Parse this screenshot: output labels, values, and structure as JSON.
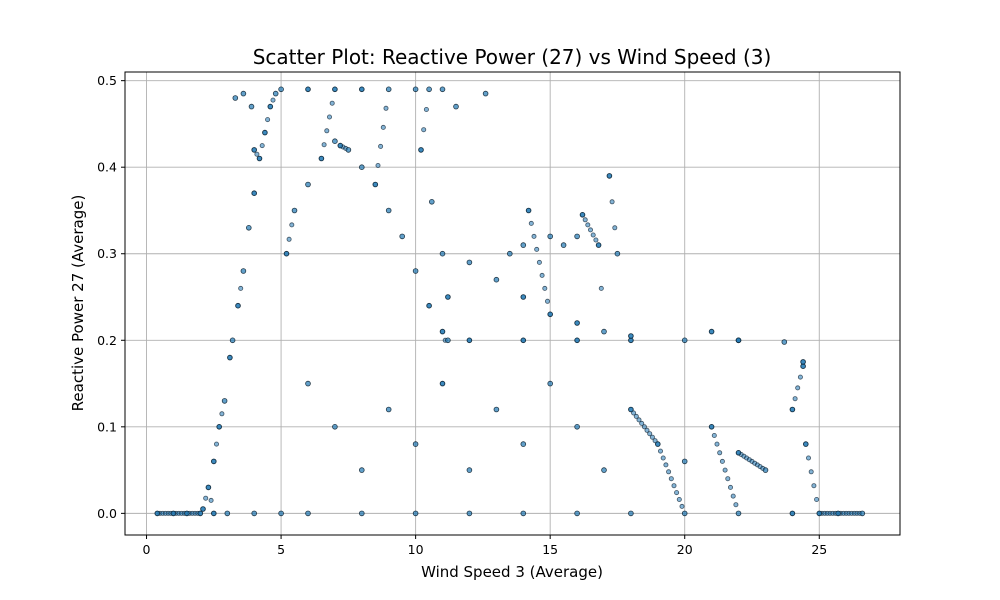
{
  "chart_data": {
    "type": "scatter",
    "title": "Scatter Plot: Reactive Power (27) vs Wind Speed (3)",
    "xlabel": "Wind Speed 3 (Average)",
    "ylabel": "Reactive Power 27 (Average)",
    "xlim": [
      -0.8,
      28.0
    ],
    "ylim": [
      -0.025,
      0.51
    ],
    "xticks": [
      0,
      5,
      10,
      15,
      20,
      25
    ],
    "yticks": [
      0.0,
      0.1,
      0.2,
      0.3,
      0.4,
      0.5
    ],
    "xtick_labels": [
      "0",
      "5",
      "10",
      "15",
      "20",
      "25"
    ],
    "ytick_labels": [
      "0.0",
      "0.1",
      "0.2",
      "0.3",
      "0.4",
      "0.5"
    ],
    "grid": true,
    "marker_color": "#1f77b4",
    "marker_edge_color": "#0b1e2d",
    "series": [
      {
        "shape_summary": {
          "baseline": {
            "x_range": [
              0.4,
              26.6
            ],
            "y": 0.0
          },
          "ramp_up": {
            "x_range": [
              2.0,
              5.0
            ],
            "y_range": [
              0.0,
              0.49
            ]
          },
          "plateau": {
            "x_range": [
              5.0,
              10.0
            ],
            "y": 0.49
          },
          "ramp_down": {
            "x_range": [
              10.0,
              11.2
            ],
            "y_range": [
              0.49,
              0.2
            ]
          },
          "tail": {
            "x_range": [
              11.2,
              23.7
            ],
            "y": 0.2
          },
          "inner_arc_peak": {
            "x": 7.2,
            "y": 0.43
          },
          "scatter_region": {
            "x_range": [
              4.5,
              24.5
            ],
            "y_range": [
              0.0,
              0.35
            ]
          }
        },
        "points": [
          [
            0.4,
            0.0
          ],
          [
            1.0,
            0.0
          ],
          [
            1.5,
            0.0
          ],
          [
            2.0,
            0.0
          ],
          [
            2.5,
            0.0
          ],
          [
            3.0,
            0.0
          ],
          [
            4.0,
            0.0
          ],
          [
            5.0,
            0.0
          ],
          [
            6.0,
            0.0
          ],
          [
            8.0,
            0.0
          ],
          [
            10.0,
            0.0
          ],
          [
            12.0,
            0.0
          ],
          [
            14.0,
            0.0
          ],
          [
            16.0,
            0.0
          ],
          [
            18.0,
            0.0
          ],
          [
            20.0,
            0.0
          ],
          [
            22.0,
            0.0
          ],
          [
            24.0,
            0.0
          ],
          [
            25.0,
            0.0
          ],
          [
            25.7,
            0.0
          ],
          [
            26.6,
            0.0
          ],
          [
            2.1,
            0.005
          ],
          [
            2.3,
            0.03
          ],
          [
            2.5,
            0.06
          ],
          [
            2.7,
            0.1
          ],
          [
            2.9,
            0.13
          ],
          [
            3.1,
            0.18
          ],
          [
            3.2,
            0.2
          ],
          [
            3.4,
            0.24
          ],
          [
            3.6,
            0.28
          ],
          [
            3.8,
            0.33
          ],
          [
            4.0,
            0.37
          ],
          [
            4.2,
            0.41
          ],
          [
            4.4,
            0.44
          ],
          [
            4.6,
            0.47
          ],
          [
            4.8,
            0.485
          ],
          [
            3.3,
            0.48
          ],
          [
            3.6,
            0.485
          ],
          [
            3.9,
            0.47
          ],
          [
            4.0,
            0.42
          ],
          [
            5.0,
            0.49
          ],
          [
            6.0,
            0.49
          ],
          [
            7.0,
            0.49
          ],
          [
            8.0,
            0.49
          ],
          [
            9.0,
            0.49
          ],
          [
            10.0,
            0.49
          ],
          [
            10.5,
            0.49
          ],
          [
            11.0,
            0.49
          ],
          [
            11.5,
            0.47
          ],
          [
            12.6,
            0.485
          ],
          [
            5.2,
            0.3
          ],
          [
            5.5,
            0.35
          ],
          [
            6.0,
            0.38
          ],
          [
            6.5,
            0.41
          ],
          [
            7.0,
            0.43
          ],
          [
            7.2,
            0.425
          ],
          [
            7.5,
            0.42
          ],
          [
            8.0,
            0.4
          ],
          [
            8.5,
            0.38
          ],
          [
            9.0,
            0.35
          ],
          [
            9.5,
            0.32
          ],
          [
            10.0,
            0.28
          ],
          [
            10.5,
            0.24
          ],
          [
            11.0,
            0.21
          ],
          [
            10.2,
            0.42
          ],
          [
            10.6,
            0.36
          ],
          [
            11.0,
            0.3
          ],
          [
            11.2,
            0.25
          ],
          [
            11.2,
            0.2
          ],
          [
            12.0,
            0.2
          ],
          [
            14.0,
            0.2
          ],
          [
            16.0,
            0.2
          ],
          [
            18.0,
            0.2
          ],
          [
            20.0,
            0.2
          ],
          [
            22.0,
            0.2
          ],
          [
            23.7,
            0.198
          ],
          [
            12.0,
            0.29
          ],
          [
            13.0,
            0.27
          ],
          [
            14.0,
            0.25
          ],
          [
            15.0,
            0.23
          ],
          [
            16.0,
            0.22
          ],
          [
            17.0,
            0.21
          ],
          [
            18.0,
            0.205
          ],
          [
            15.0,
            0.32
          ],
          [
            15.5,
            0.31
          ],
          [
            16.0,
            0.32
          ],
          [
            16.8,
            0.31
          ],
          [
            17.5,
            0.3
          ],
          [
            14.0,
            0.31
          ],
          [
            13.5,
            0.3
          ],
          [
            16.2,
            0.345
          ],
          [
            17.2,
            0.39
          ],
          [
            14.2,
            0.35
          ],
          [
            21.0,
            0.21
          ],
          [
            22.0,
            0.2
          ],
          [
            24.4,
            0.17
          ],
          [
            24.4,
            0.175
          ],
          [
            6.0,
            0.15
          ],
          [
            7.0,
            0.1
          ],
          [
            8.0,
            0.05
          ],
          [
            9.0,
            0.12
          ],
          [
            10.0,
            0.08
          ],
          [
            11.0,
            0.15
          ],
          [
            12.0,
            0.05
          ],
          [
            13.0,
            0.12
          ],
          [
            14.0,
            0.08
          ],
          [
            15.0,
            0.15
          ],
          [
            16.0,
            0.1
          ],
          [
            17.0,
            0.05
          ],
          [
            18.0,
            0.12
          ],
          [
            19.0,
            0.08
          ],
          [
            20.0,
            0.06
          ],
          [
            21.0,
            0.1
          ],
          [
            22.0,
            0.07
          ],
          [
            23.0,
            0.05
          ],
          [
            24.0,
            0.12
          ],
          [
            24.5,
            0.08
          ]
        ]
      }
    ]
  }
}
